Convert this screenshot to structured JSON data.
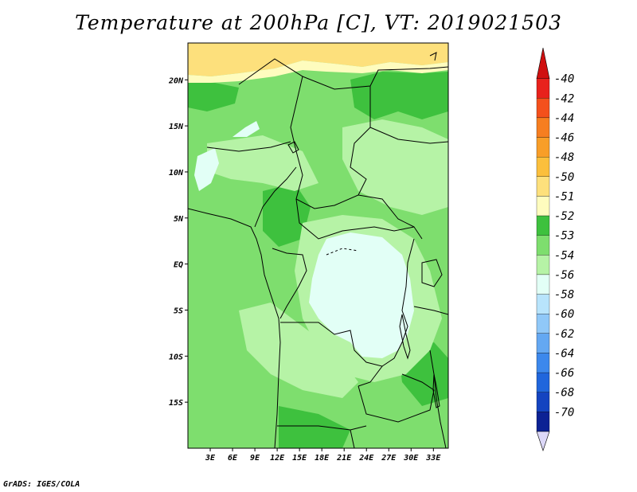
{
  "title": "Temperature at 200hPa [C], VT: 2019021503",
  "credit": "GrADS: IGES/COLA",
  "map": {
    "lon_range": [
      0,
      35
    ],
    "lat_range": [
      -20,
      24
    ],
    "lon_ticks": [
      {
        "lon": 3,
        "label": "3E"
      },
      {
        "lon": 6,
        "label": "6E"
      },
      {
        "lon": 9,
        "label": "9E"
      },
      {
        "lon": 12,
        "label": "12E"
      },
      {
        "lon": 15,
        "label": "15E"
      },
      {
        "lon": 18,
        "label": "18E"
      },
      {
        "lon": 21,
        "label": "21E"
      },
      {
        "lon": 24,
        "label": "24E"
      },
      {
        "lon": 27,
        "label": "27E"
      },
      {
        "lon": 30,
        "label": "30E"
      },
      {
        "lon": 33,
        "label": "33E"
      }
    ],
    "lat_ticks": [
      {
        "lat": 20,
        "label": "20N"
      },
      {
        "lat": 15,
        "label": "15N"
      },
      {
        "lat": 10,
        "label": "10N"
      },
      {
        "lat": 5,
        "label": "5N"
      },
      {
        "lat": 0,
        "label": "EQ"
      },
      {
        "lat": -5,
        "label": "5S"
      },
      {
        "lat": -10,
        "label": "10S"
      },
      {
        "lat": -15,
        "label": "15S"
      }
    ]
  },
  "legend": [
    {
      "label": "-40",
      "color": "#e8221c"
    },
    {
      "label": "-42",
      "color": "#f4501c"
    },
    {
      "label": "-44",
      "color": "#f67e20"
    },
    {
      "label": "-46",
      "color": "#f89e28"
    },
    {
      "label": "-48",
      "color": "#fbbf3c"
    },
    {
      "label": "-50",
      "color": "#fde07c"
    },
    {
      "label": "-51",
      "color": "#fefcbe"
    },
    {
      "label": "-52",
      "color": "#3ec13e"
    },
    {
      "label": "-53",
      "color": "#7ede6e"
    },
    {
      "label": "-54",
      "color": "#b6f3a6"
    },
    {
      "label": "-56",
      "color": "#e2fff6"
    },
    {
      "label": "-58",
      "color": "#b8e4fc"
    },
    {
      "label": "-60",
      "color": "#90c8f8"
    },
    {
      "label": "-62",
      "color": "#64a8f2"
    },
    {
      "label": "-64",
      "color": "#3c88ec"
    },
    {
      "label": "-66",
      "color": "#2066dc"
    },
    {
      "label": "-68",
      "color": "#1444c0"
    },
    {
      "label": "-70",
      "color": "#0c2294"
    }
  ],
  "legend_end_colors": {
    "top": "#d01010",
    "bottom": "#dcd8f8"
  }
}
